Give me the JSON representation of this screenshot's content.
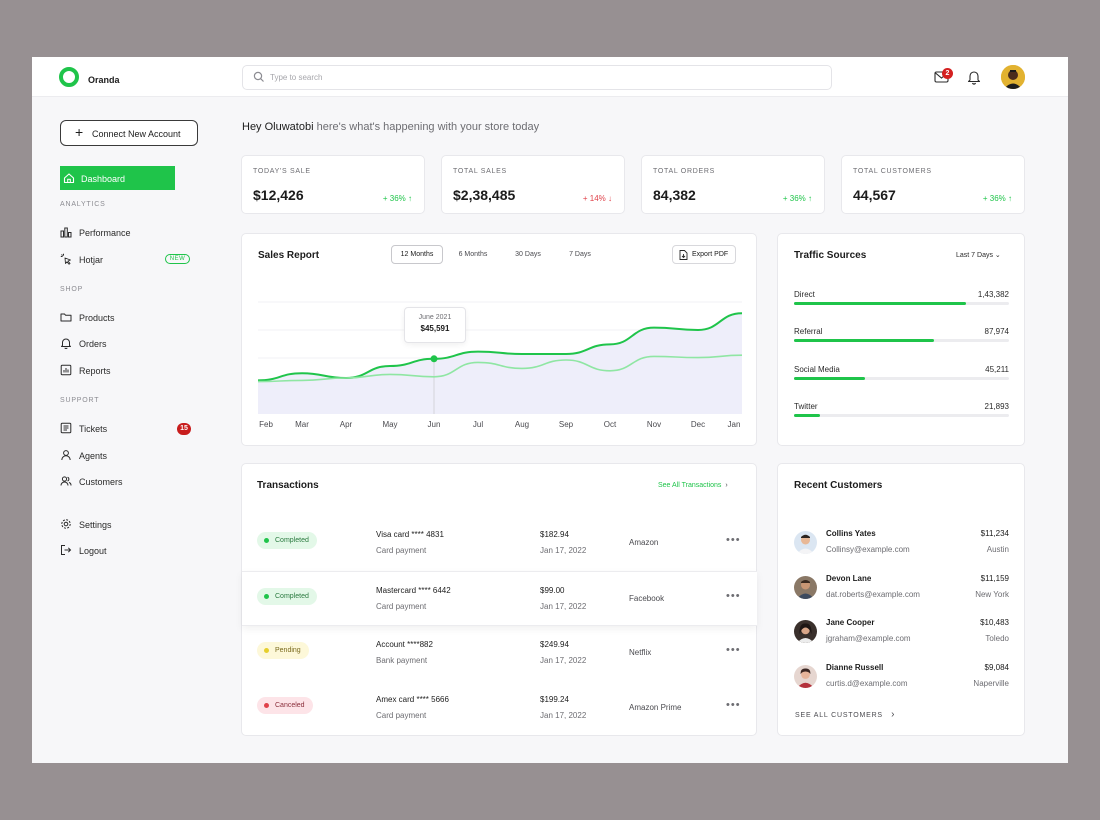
{
  "app": {
    "brand": "Oranda"
  },
  "topbar": {
    "search_placeholder": "Type to search",
    "mail_badge": "2",
    "mail_icon": "mail-icon",
    "bell_icon": "bell-icon"
  },
  "sidebar": {
    "connect_button": "Connect New Account",
    "dashboard": "Dashboard",
    "analytics_label": "ANALYTICS",
    "performance": "Performance",
    "hotjar": "Hotjar",
    "new_badge": "NEW",
    "shop_label": "SHOP",
    "products": "Products",
    "orders": "Orders",
    "reports": "Reports",
    "support_label": "SUPPORT",
    "tickets": "Tickets",
    "tickets_badge": "15",
    "agents": "Agents",
    "customers": "Customers",
    "settings": "Settings",
    "logout": "Logout"
  },
  "greeting": {
    "name": "Hey Oluwatobi",
    "rest": " here's what's happening with your store today"
  },
  "stats": [
    {
      "title": "TODAY'S SALE",
      "value": "$12,426",
      "delta": "+ 36% ↑",
      "trend": "up"
    },
    {
      "title": "TOTAL SALES",
      "value": "$2,38,485",
      "delta": "+ 14% ↓",
      "trend": "down"
    },
    {
      "title": "TOTAL ORDERS",
      "value": "84,382",
      "delta": "+ 36% ↑",
      "trend": "up"
    },
    {
      "title": "TOTAL CUSTOMERS",
      "value": "44,567",
      "delta": "+ 36% ↑",
      "trend": "up"
    }
  ],
  "sales_report": {
    "title": "Sales Report",
    "tabs": [
      "12 Months",
      "6 Months",
      "30 Days",
      "7 Days"
    ],
    "selected_tab": "12 Months",
    "export": "Export PDF",
    "tooltip": {
      "label": "June 2021",
      "value": "$45,591"
    },
    "months": [
      "Feb",
      "Mar",
      "Apr",
      "May",
      "Jun",
      "Jul",
      "Aug",
      "Sep",
      "Oct",
      "Nov",
      "Dec",
      "Jan"
    ]
  },
  "chart_data": {
    "type": "line",
    "categories": [
      "Feb",
      "Mar",
      "Apr",
      "May",
      "Jun",
      "Jul",
      "Aug",
      "Sep",
      "Oct",
      "Nov",
      "Dec",
      "Jan"
    ],
    "series": [
      {
        "values": [
          28,
          34,
          30,
          40,
          46,
          52,
          50,
          50,
          58,
          72,
          70,
          84
        ]
      },
      {
        "values": [
          27,
          28,
          30,
          33,
          31,
          43,
          38,
          45,
          36,
          48,
          47,
          49
        ]
      }
    ],
    "ylim": [
      0,
      100
    ],
    "highlight": {
      "category": "Jun",
      "label": "June 2021",
      "value": "$45,591"
    },
    "colors": {
      "primary": "#1fc44a",
      "secondary": "#8fe6a3",
      "area": "#eeeefa"
    }
  },
  "traffic": {
    "title": "Traffic Sources",
    "range": "Last 7 Days",
    "rows": [
      {
        "name": "Direct",
        "value": "1,43,382",
        "fraction": 0.8
      },
      {
        "name": "Referral",
        "value": "87,974",
        "fraction": 0.65
      },
      {
        "name": "Social Media",
        "value": "45,211",
        "fraction": 0.33
      },
      {
        "name": "Twitter",
        "value": "21,893",
        "fraction": 0.12
      }
    ]
  },
  "transactions": {
    "title": "Transactions",
    "see_all": "See All Transactions",
    "rows": [
      {
        "status": "Completed",
        "status_type": "completed",
        "method": "Visa card  **** 4831",
        "method_sub": "Card payment",
        "amount": "$182.94",
        "date": "Jan 17, 2022",
        "merchant": "Amazon"
      },
      {
        "status": "Completed",
        "status_type": "completed",
        "method": "Mastercard  **** 6442",
        "method_sub": "Card payment",
        "amount": "$99.00",
        "date": "Jan 17, 2022",
        "merchant": "Facebook"
      },
      {
        "status": "Pending",
        "status_type": "pending",
        "method": "Account  ****882",
        "method_sub": "Bank payment",
        "amount": "$249.94",
        "date": "Jan 17, 2022",
        "merchant": "Netflix"
      },
      {
        "status": "Canceled",
        "status_type": "canceled",
        "method": "Amex card  **** 5666",
        "method_sub": "Card payment",
        "amount": "$199.24",
        "date": "Jan 17, 2022",
        "merchant": "Amazon Prime"
      }
    ]
  },
  "recent_customers": {
    "title": "Recent Customers",
    "see_all": "SEE ALL CUSTOMERS",
    "rows": [
      {
        "name": "Collins Yates",
        "email": "Collinsy@example.com",
        "amount": "$11,234",
        "city": "Austin"
      },
      {
        "name": "Devon Lane",
        "email": "dat.roberts@example.com",
        "amount": "$11,159",
        "city": "New York"
      },
      {
        "name": "Jane Cooper",
        "email": "jgraham@example.com",
        "amount": "$10,483",
        "city": "Toledo"
      },
      {
        "name": "Dianne Russell",
        "email": "curtis.d@example.com",
        "amount": "$9,084",
        "city": "Naperville"
      }
    ]
  }
}
